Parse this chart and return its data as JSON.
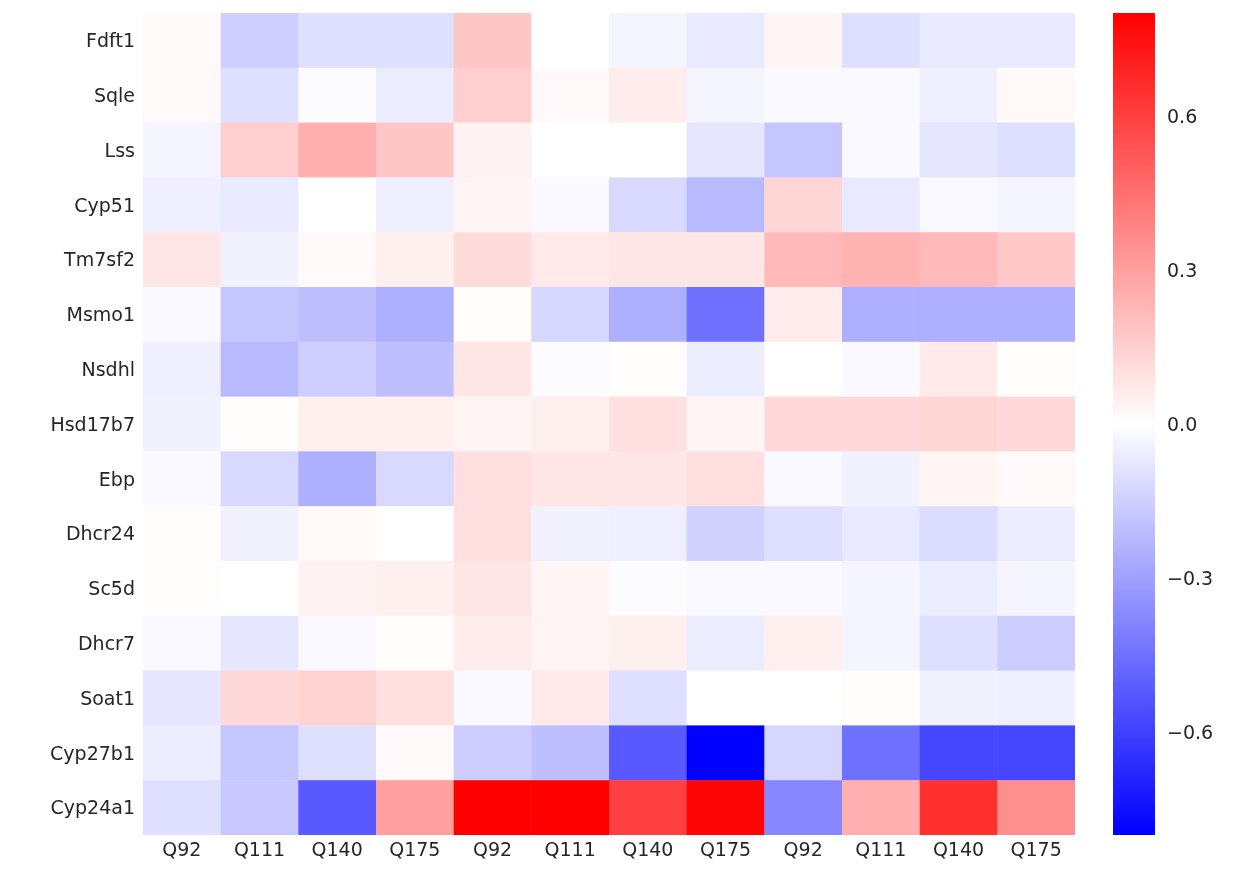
{
  "chart_data": {
    "type": "heatmap",
    "categories": [
      "Q92",
      "Q111",
      "Q140",
      "Q175",
      "Q92",
      "Q111",
      "Q140",
      "Q175",
      "Q92",
      "Q111",
      "Q140",
      "Q175"
    ],
    "y_categories": [
      "Fdft1",
      "Sqle",
      "Lss",
      "Cyp51",
      "Tm7sf2",
      "Msmo1",
      "Nsdhl",
      "Hsd17b7",
      "Ebp",
      "Dhcr24",
      "Sc5d",
      "Dhcr7",
      "Soat1",
      "Cyp27b1",
      "Cyp24a1"
    ],
    "cells": [
      [
        0.02,
        -0.15,
        -0.1,
        -0.1,
        0.18,
        0.0,
        -0.03,
        -0.07,
        0.03,
        -0.1,
        -0.07,
        -0.07
      ],
      [
        0.02,
        -0.1,
        -0.01,
        -0.06,
        0.15,
        0.02,
        0.06,
        -0.03,
        -0.02,
        -0.02,
        -0.05,
        0.02
      ],
      [
        -0.03,
        0.15,
        0.25,
        0.18,
        0.04,
        0.0,
        0.0,
        -0.08,
        -0.18,
        -0.02,
        -0.08,
        -0.1
      ],
      [
        -0.05,
        -0.07,
        0.0,
        -0.05,
        0.03,
        -0.02,
        -0.12,
        -0.22,
        0.13,
        -0.07,
        -0.02,
        -0.03
      ],
      [
        0.08,
        -0.04,
        0.02,
        0.05,
        0.11,
        0.07,
        0.08,
        0.08,
        0.22,
        0.24,
        0.22,
        0.17
      ],
      [
        -0.02,
        -0.18,
        -0.2,
        -0.25,
        0.01,
        -0.13,
        -0.25,
        -0.45,
        0.06,
        -0.25,
        -0.25,
        -0.25
      ],
      [
        -0.05,
        -0.22,
        -0.15,
        -0.2,
        0.08,
        -0.01,
        0.01,
        -0.06,
        0.0,
        -0.02,
        0.07,
        0.01
      ],
      [
        -0.04,
        0.01,
        0.05,
        0.05,
        0.03,
        0.05,
        0.1,
        0.03,
        0.12,
        0.12,
        0.13,
        0.12
      ],
      [
        -0.02,
        -0.12,
        -0.25,
        -0.12,
        0.1,
        0.08,
        0.08,
        0.1,
        -0.02,
        -0.04,
        0.03,
        0.02
      ],
      [
        0.01,
        -0.04,
        0.02,
        0.0,
        0.1,
        -0.04,
        -0.05,
        -0.14,
        -0.1,
        -0.07,
        -0.11,
        -0.06
      ],
      [
        0.01,
        0.0,
        0.04,
        0.05,
        0.08,
        0.03,
        -0.01,
        -0.02,
        -0.02,
        -0.03,
        -0.06,
        -0.03
      ],
      [
        -0.02,
        -0.08,
        -0.02,
        0.01,
        0.06,
        0.03,
        0.05,
        -0.06,
        0.05,
        -0.03,
        -0.1,
        -0.16
      ],
      [
        -0.08,
        0.12,
        0.14,
        0.1,
        -0.02,
        0.07,
        -0.1,
        0.0,
        0.0,
        0.01,
        -0.04,
        -0.05
      ],
      [
        -0.06,
        -0.18,
        -0.1,
        0.02,
        -0.16,
        -0.2,
        -0.52,
        -0.8,
        -0.13,
        -0.45,
        -0.58,
        -0.58
      ],
      [
        -0.1,
        -0.17,
        -0.52,
        0.3,
        0.8,
        0.8,
        0.6,
        0.78,
        -0.38,
        0.25,
        0.65,
        0.35
      ]
    ],
    "clim": [
      -0.8,
      0.8
    ],
    "cticks": [
      {
        "value": -0.6,
        "label": "−0.6"
      },
      {
        "value": -0.3,
        "label": "−0.3"
      },
      {
        "value": 0,
        "label": "0.0"
      },
      0.3,
      0.6
    ]
  }
}
